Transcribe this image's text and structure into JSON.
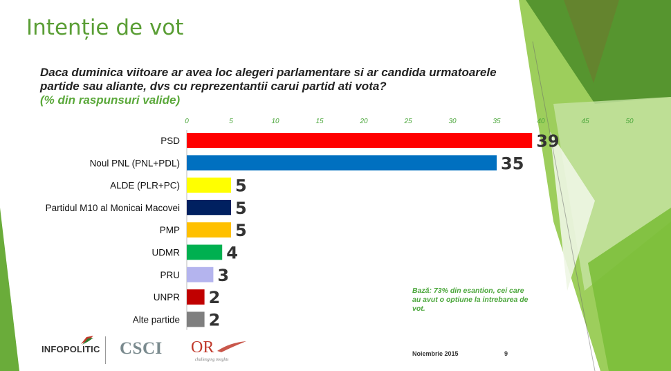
{
  "slide": {
    "title": "Intenție de vot",
    "question": "Daca duminica viitoare ar avea loc alegeri parlamentare si ar candida urmatoarele partide sau aliante, dvs cu reprezentantii carui partid ati vota?",
    "question_sub": "(% din raspunsuri valide)",
    "note": "Bază: 73% din esantion, cei care au avut o optiune la intrebarea de vot.",
    "footer_date": "Noiembrie 2015",
    "page_number": "9",
    "logos": {
      "infopolitic": "INFOPOLITIC",
      "csci": "CSCI",
      "or": "OR",
      "or_tagline": "challenging insights"
    }
  },
  "chart_data": {
    "type": "bar",
    "orientation": "horizontal",
    "categories": [
      "PSD",
      "Noul PNL (PNL+PDL)",
      "ALDE (PLR+PC)",
      "Partidul M10 al Monicai Macovei",
      "PMP",
      "UDMR",
      "PRU",
      "UNPR",
      "Alte partide"
    ],
    "values": [
      39,
      35,
      5,
      5,
      5,
      4,
      3,
      2,
      2
    ],
    "colors": [
      "#ff0000",
      "#0070c0",
      "#ffff00",
      "#002060",
      "#ffc000",
      "#00b050",
      "#b4b4ee",
      "#c00000",
      "#7f7f7f"
    ],
    "xticks": [
      0,
      5,
      10,
      15,
      20,
      25,
      30,
      35,
      40,
      45,
      50
    ],
    "xlim": [
      0,
      50
    ],
    "axis_position": "top",
    "grid": false,
    "legend": "none"
  }
}
